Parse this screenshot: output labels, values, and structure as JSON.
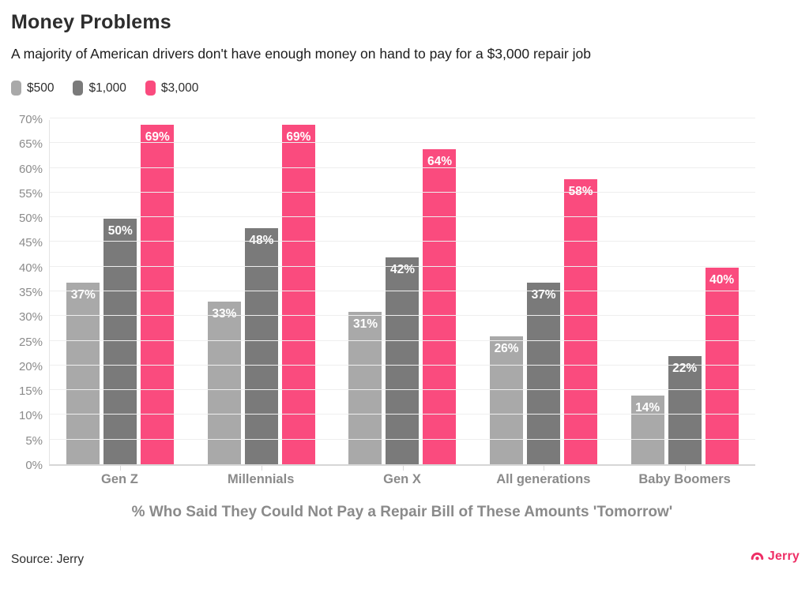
{
  "header": {
    "title": "Money Problems",
    "subtitle": "A majority of American drivers don't have enough money on hand to pay for a $3,000 repair job"
  },
  "legend": {
    "position": "top-left",
    "items": [
      {
        "label": "$500",
        "color": "#a9a9a9"
      },
      {
        "label": "$1,000",
        "color": "#7a7a7a"
      },
      {
        "label": "$3,000",
        "color": "#fa4b7e"
      }
    ]
  },
  "chart_data": {
    "type": "bar",
    "categories": [
      "Gen Z",
      "Millennials",
      "Gen X",
      "All generations",
      "Baby Boomers"
    ],
    "series": [
      {
        "name": "$500",
        "color": "#a9a9a9",
        "values": [
          37,
          33,
          31,
          26,
          14
        ]
      },
      {
        "name": "$1,000",
        "color": "#7a7a7a",
        "values": [
          50,
          48,
          42,
          37,
          22
        ]
      },
      {
        "name": "$3,000",
        "color": "#fa4b7e",
        "values": [
          69,
          69,
          64,
          58,
          40
        ]
      }
    ],
    "title": "Money Problems",
    "xlabel": "% Who Said They Could Not Pay a Repair Bill of These Amounts 'Tomorrow'",
    "ylabel": "",
    "ylim": [
      0,
      70
    ],
    "y_tick_step": 5,
    "y_tick_labels": [
      "0%",
      "5%",
      "10%",
      "15%",
      "20%",
      "25%",
      "30%",
      "35%",
      "40%",
      "45%",
      "50%",
      "55%",
      "60%",
      "65%",
      "70%"
    ],
    "grid": true,
    "bar_label_suffix": "%",
    "bar_label_color": "#ffffff"
  },
  "footer": {
    "source": "Source: Jerry",
    "brand": "Jerry",
    "brand_color": "#ee2f66"
  }
}
